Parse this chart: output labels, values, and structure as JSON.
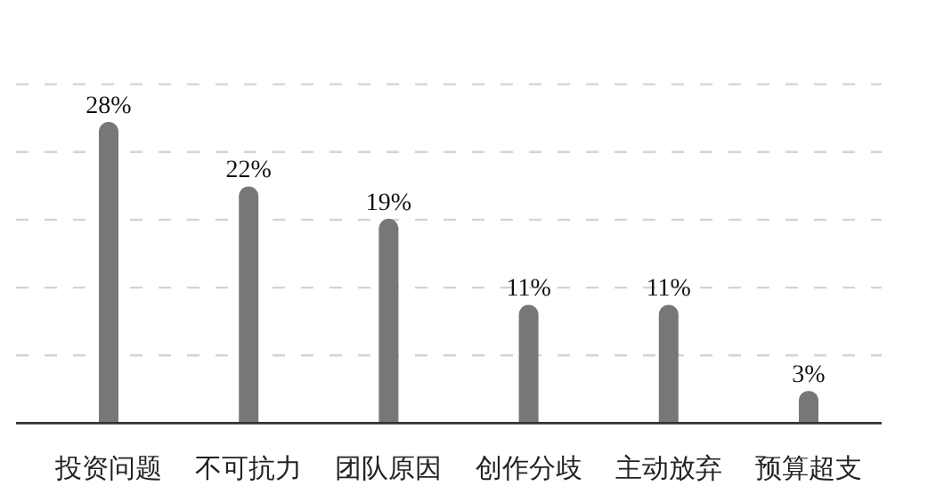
{
  "chart_data": {
    "type": "bar",
    "categories": [
      "投资问题",
      "不可抗力",
      "团队原因",
      "创作分歧",
      "主动放弃",
      "预算超支"
    ],
    "values": [
      28,
      22,
      19,
      11,
      11,
      3
    ],
    "value_labels": [
      "28%",
      "22%",
      "19%",
      "11%",
      "11%",
      "3%"
    ],
    "colors": [
      "#777777",
      "#777777",
      "#777777",
      "#777777",
      "#777777",
      "#777777"
    ],
    "ylim": [
      0,
      31.5
    ],
    "yticks": [
      {
        "value": 6.3,
        "label": null
      },
      {
        "value": 12.6,
        "label": null
      },
      {
        "value": 18.9,
        "label": null
      },
      {
        "value": 25.2,
        "label": null
      },
      {
        "value": 31.5,
        "label": null
      }
    ],
    "tick_labels": "x",
    "grid": "y"
  }
}
